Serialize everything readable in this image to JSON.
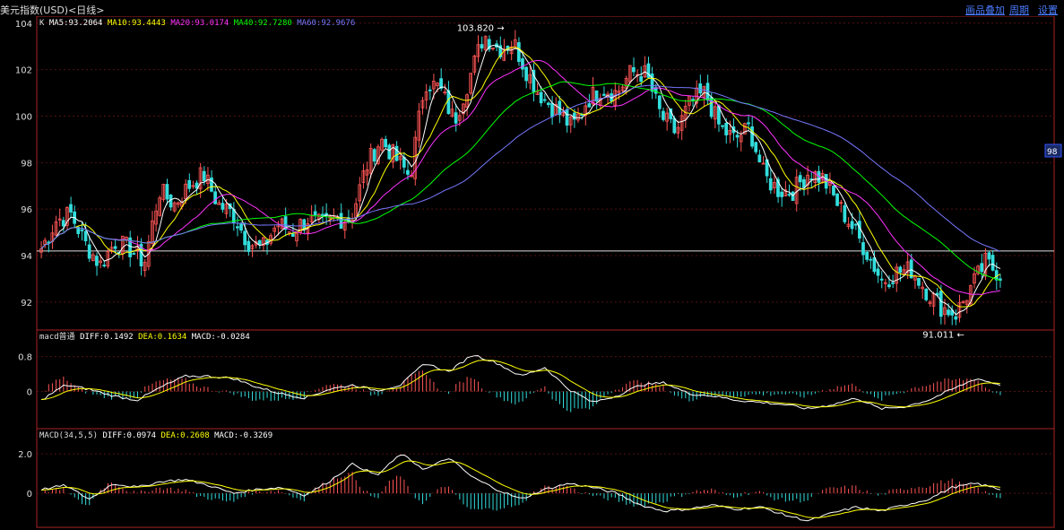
{
  "topbar": {
    "title": "美元指数(USD)<日线>",
    "link1": "画品叠加",
    "link2": "周期",
    "link3": "设置"
  },
  "right_tag": "98",
  "colors": {
    "ma5": "#ffffff",
    "ma10": "#ffff00",
    "ma20": "#ff33ff",
    "ma40": "#00ff00",
    "ma60": "#7777ff",
    "up": "#ff5555",
    "down": "#33dddd",
    "grid": "#551111",
    "axis": "#aa2222"
  },
  "chart_data": [
    {
      "type": "candlestick",
      "title": "K",
      "legend": [
        {
          "name": "MA5",
          "value": "93.2064",
          "color": "#ffffff"
        },
        {
          "name": "MA10",
          "value": "93.4443",
          "color": "#ffff00"
        },
        {
          "name": "MA20",
          "value": "93.0174",
          "color": "#ff33ff"
        },
        {
          "name": "MA40",
          "value": "92.7280",
          "color": "#00ff00"
        },
        {
          "name": "MA60",
          "value": "92.9676",
          "color": "#7777ff"
        }
      ],
      "ylim": [
        90.8,
        104.3
      ],
      "yticks": [
        "104",
        "102",
        "100",
        "98",
        "96",
        "94",
        "92"
      ],
      "high_label": "103.820",
      "low_label": "91.011",
      "high": 103.82,
      "low": 91.011,
      "reference_line": 94.2,
      "close_path": [
        94.3,
        95.5,
        95.8,
        94.5,
        93.6,
        94.6,
        94.3,
        93.7,
        96.8,
        96.2,
        97.0,
        97.5,
        96.2,
        95.8,
        94.6,
        94.3,
        95.4,
        95.0,
        95.6,
        95.3,
        95.6,
        95.6,
        97.8,
        99.0,
        98.2,
        97.4,
        101.5,
        101.2,
        99.8,
        101.6,
        103.5,
        102.9,
        103.2,
        101.8,
        100.8,
        100.2,
        99.5,
        100.7,
        101.2,
        101.0,
        101.9,
        101.8,
        100.0,
        99.3,
        100.6,
        101.0,
        99.5,
        99.0,
        99.5,
        97.4,
        96.8,
        96.8,
        97.6,
        97.3,
        96.2,
        95.2,
        94.1,
        92.9,
        93.3,
        93.4,
        92.5,
        91.8,
        91.5,
        92.6,
        93.7,
        93.2
      ]
    },
    {
      "type": "line",
      "title": "macd普通",
      "legend": [
        {
          "name": "DIFF",
          "value": "0.1492",
          "color": "#ffffff"
        },
        {
          "name": "DEA",
          "value": "0.1634",
          "color": "#ffff00"
        },
        {
          "name": "MACD",
          "value": "-0.0284",
          "color": "#ffffff"
        }
      ],
      "ylim": [
        -0.75,
        1.1
      ],
      "yticks": [
        "0.8",
        "0"
      ],
      "diff": [
        -0.2,
        0.15,
        0.05,
        -0.1,
        -0.2,
        0.1,
        0.35,
        0.35,
        0.3,
        0.1,
        -0.05,
        -0.15,
        0.05,
        0.15,
        0.02,
        0.15,
        0.65,
        0.45,
        0.85,
        0.65,
        0.35,
        0.55,
        0.05,
        -0.25,
        -0.1,
        0.15,
        0.2,
        -0.05,
        -0.1,
        -0.2,
        -0.25,
        -0.3,
        -0.4,
        -0.3,
        -0.15,
        -0.4,
        -0.35,
        -0.2,
        0.05,
        0.3,
        0.15
      ]
    },
    {
      "type": "line",
      "title": "MACD(34,5,5)",
      "legend": [
        {
          "name": "DIFF",
          "value": "0.0974",
          "color": "#ffffff"
        },
        {
          "name": "DEA",
          "value": "0.2608",
          "color": "#ffff00"
        },
        {
          "name": "MACD",
          "value": "-0.3269",
          "color": "#ffffff"
        }
      ],
      "ylim": [
        -1.5,
        2.6
      ],
      "yticks": [
        "2.0",
        "0"
      ],
      "diff": [
        0.2,
        0.4,
        -0.3,
        0.5,
        0.3,
        0.6,
        0.7,
        0.4,
        0.0,
        0.2,
        0.3,
        -0.1,
        0.6,
        1.5,
        0.9,
        2.0,
        1.2,
        1.8,
        0.8,
        0.2,
        -0.3,
        0.2,
        0.5,
        0.3,
        0.0,
        -0.6,
        -0.9,
        -0.8,
        -0.6,
        -0.8,
        -0.7,
        -1.1,
        -1.4,
        -1.0,
        -0.7,
        -0.9,
        -0.6,
        -0.3,
        0.3,
        0.5,
        0.2
      ]
    }
  ]
}
